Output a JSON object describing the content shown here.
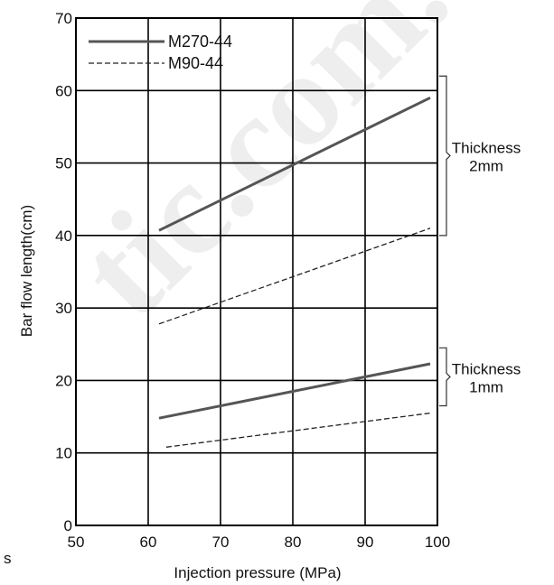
{
  "chart_data": {
    "type": "line",
    "title": "",
    "xlabel": "Injection pressure (MPa)",
    "ylabel": "Bar flow length(cm)",
    "xlim": [
      50,
      100
    ],
    "ylim": [
      0,
      70
    ],
    "x_ticks": [
      "50",
      "60",
      "70",
      "80",
      "90",
      "100"
    ],
    "y_ticks": [
      "0",
      "10",
      "20",
      "30",
      "40",
      "50",
      "60",
      "70"
    ],
    "grid": true,
    "legend_position": "top-left",
    "series": [
      {
        "name": "M270-44",
        "style": "solid",
        "group": "2mm",
        "x": [
          61.5,
          99
        ],
        "y": [
          40.7,
          59.0
        ],
        "color": "#555555"
      },
      {
        "name": "M90-44",
        "style": "dashed",
        "group": "2mm",
        "x": [
          61.5,
          99
        ],
        "y": [
          27.8,
          41.0
        ],
        "color": "#222222"
      },
      {
        "name": "M270-44",
        "style": "solid",
        "group": "1mm",
        "x": [
          61.5,
          99
        ],
        "y": [
          14.8,
          22.3
        ],
        "color": "#555555"
      },
      {
        "name": "M90-44",
        "style": "dashed",
        "group": "1mm",
        "x": [
          62.5,
          99
        ],
        "y": [
          10.8,
          15.5
        ],
        "color": "#222222"
      }
    ],
    "annotations": [
      {
        "line1": "Thickness",
        "line2": "2mm",
        "y_range": [
          40,
          62
        ]
      },
      {
        "line1": "Thickness",
        "line2": "1mm",
        "y_range": [
          16.5,
          24.5
        ]
      }
    ],
    "watermark": "tic.com.v",
    "margin_glyph": "s"
  }
}
